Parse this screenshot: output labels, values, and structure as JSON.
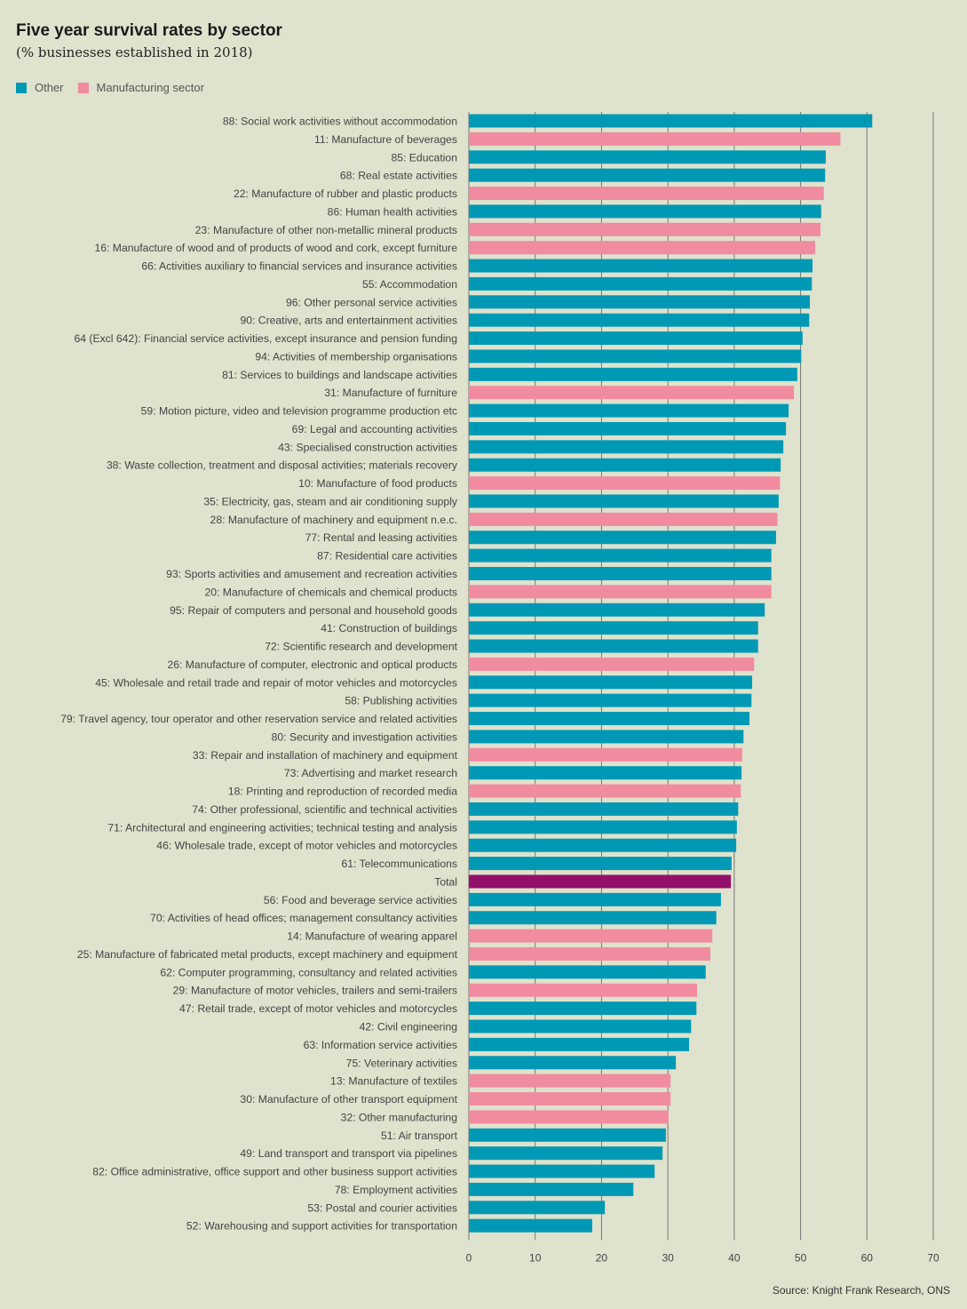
{
  "chart_data": {
    "type": "bar",
    "orientation": "horizontal",
    "title": "Five year survival rates by sector",
    "subtitle": "(% businesses established in 2018)",
    "legend": [
      {
        "name": "Other",
        "color": "#0099b5"
      },
      {
        "name": "Manufacturing sector",
        "color": "#f08ba0"
      }
    ],
    "legend_position": "top-left",
    "total_color": "#93106a",
    "xlim": [
      0,
      70
    ],
    "xticks": [
      0,
      10,
      20,
      30,
      40,
      50,
      60,
      70
    ],
    "grid": true,
    "source": "Source: Knight Frank Research, ONS",
    "categories": [
      {
        "label": "88: Social work activities without accommodation",
        "value": 60.8,
        "group": "Other"
      },
      {
        "label": "11: Manufacture of beverages",
        "value": 56.0,
        "group": "Manufacturing sector"
      },
      {
        "label": "85: Education",
        "value": 53.8,
        "group": "Other"
      },
      {
        "label": "68: Real estate activities",
        "value": 53.7,
        "group": "Other"
      },
      {
        "label": "22: Manufacture of rubber and plastic products",
        "value": 53.5,
        "group": "Manufacturing sector"
      },
      {
        "label": "86: Human health activities",
        "value": 53.1,
        "group": "Other"
      },
      {
        "label": "23: Manufacture of other non-metallic mineral products",
        "value": 53.0,
        "group": "Manufacturing sector"
      },
      {
        "label": "16: Manufacture of wood and of products of wood and cork, except furniture",
        "value": 52.2,
        "group": "Manufacturing sector"
      },
      {
        "label": "66: Activities auxiliary to financial services and insurance activities",
        "value": 51.8,
        "group": "Other"
      },
      {
        "label": "55: Accommodation",
        "value": 51.7,
        "group": "Other"
      },
      {
        "label": "96: Other personal service activities",
        "value": 51.4,
        "group": "Other"
      },
      {
        "label": "90: Creative, arts and entertainment activities",
        "value": 51.3,
        "group": "Other"
      },
      {
        "label": "64 (Excl 642): Financial service activities, except insurance and pension funding",
        "value": 50.3,
        "group": "Other"
      },
      {
        "label": "94: Activities of membership organisations",
        "value": 50.1,
        "group": "Other"
      },
      {
        "label": "81: Services to buildings and landscape activities",
        "value": 49.5,
        "group": "Other"
      },
      {
        "label": "31: Manufacture of furniture",
        "value": 49.0,
        "group": "Manufacturing sector"
      },
      {
        "label": "59: Motion picture, video and television programme production etc",
        "value": 48.2,
        "group": "Other"
      },
      {
        "label": "69: Legal and accounting activities",
        "value": 47.8,
        "group": "Other"
      },
      {
        "label": "43: Specialised construction activities",
        "value": 47.4,
        "group": "Other"
      },
      {
        "label": "38: Waste collection, treatment and disposal activities; materials recovery",
        "value": 47.0,
        "group": "Other"
      },
      {
        "label": "10: Manufacture of food products",
        "value": 46.9,
        "group": "Manufacturing sector"
      },
      {
        "label": "35: Electricity, gas, steam and air conditioning supply",
        "value": 46.7,
        "group": "Other"
      },
      {
        "label": "28: Manufacture of machinery and equipment n.e.c.",
        "value": 46.5,
        "group": "Manufacturing sector"
      },
      {
        "label": "77: Rental and leasing activities",
        "value": 46.3,
        "group": "Other"
      },
      {
        "label": "87: Residential care activities",
        "value": 45.6,
        "group": "Other"
      },
      {
        "label": "93: Sports activities and amusement and recreation activities",
        "value": 45.6,
        "group": "Other"
      },
      {
        "label": "20: Manufacture of chemicals and chemical products",
        "value": 45.6,
        "group": "Manufacturing sector"
      },
      {
        "label": "95: Repair of computers and personal and household goods",
        "value": 44.6,
        "group": "Other"
      },
      {
        "label": "41: Construction of buildings",
        "value": 43.6,
        "group": "Other"
      },
      {
        "label": "72: Scientific research and development",
        "value": 43.6,
        "group": "Other"
      },
      {
        "label": "26: Manufacture of computer, electronic and optical products",
        "value": 43.0,
        "group": "Manufacturing sector"
      },
      {
        "label": "45: Wholesale and retail trade and repair of motor vehicles and motorcycles",
        "value": 42.7,
        "group": "Other"
      },
      {
        "label": "58: Publishing activities",
        "value": 42.6,
        "group": "Other"
      },
      {
        "label": "79: Travel agency, tour operator and other reservation service and related activities",
        "value": 42.3,
        "group": "Other"
      },
      {
        "label": "80: Security and investigation activities",
        "value": 41.4,
        "group": "Other"
      },
      {
        "label": "33: Repair and installation of machinery and equipment",
        "value": 41.2,
        "group": "Manufacturing sector"
      },
      {
        "label": "73: Advertising and market research",
        "value": 41.1,
        "group": "Other"
      },
      {
        "label": "18: Printing and reproduction of recorded media",
        "value": 41.0,
        "group": "Manufacturing sector"
      },
      {
        "label": "74: Other professional, scientific and technical activities",
        "value": 40.6,
        "group": "Other"
      },
      {
        "label": "71: Architectural and engineering activities; technical testing and analysis",
        "value": 40.4,
        "group": "Other"
      },
      {
        "label": "46: Wholesale trade, except of motor vehicles and motorcycles",
        "value": 40.3,
        "group": "Other"
      },
      {
        "label": "61: Telecommunications",
        "value": 39.6,
        "group": "Other"
      },
      {
        "label": "Total",
        "value": 39.5,
        "group": "Total"
      },
      {
        "label": "56: Food and beverage service activities",
        "value": 38.0,
        "group": "Other"
      },
      {
        "label": "70: Activities of head offices; management consultancy activities",
        "value": 37.3,
        "group": "Other"
      },
      {
        "label": "14: Manufacture of wearing apparel",
        "value": 36.7,
        "group": "Manufacturing sector"
      },
      {
        "label": "25: Manufacture of fabricated metal products, except machinery and equipment",
        "value": 36.4,
        "group": "Manufacturing sector"
      },
      {
        "label": "62: Computer programming, consultancy and related activities",
        "value": 35.7,
        "group": "Other"
      },
      {
        "label": "29: Manufacture of motor vehicles, trailers and semi-trailers",
        "value": 34.4,
        "group": "Manufacturing sector"
      },
      {
        "label": "47: Retail trade, except of motor vehicles and motorcycles",
        "value": 34.3,
        "group": "Other"
      },
      {
        "label": "42: Civil engineering",
        "value": 33.5,
        "group": "Other"
      },
      {
        "label": "63: Information service activities",
        "value": 33.2,
        "group": "Other"
      },
      {
        "label": "75: Veterinary activities",
        "value": 31.2,
        "group": "Other"
      },
      {
        "label": "13: Manufacture of textiles",
        "value": 30.4,
        "group": "Manufacturing sector"
      },
      {
        "label": "30: Manufacture of other transport equipment",
        "value": 30.4,
        "group": "Manufacturing sector"
      },
      {
        "label": "32: Other manufacturing",
        "value": 30.1,
        "group": "Manufacturing sector"
      },
      {
        "label": "51: Air transport",
        "value": 29.7,
        "group": "Other"
      },
      {
        "label": "49: Land transport and transport via pipelines",
        "value": 29.2,
        "group": "Other"
      },
      {
        "label": "82: Office administrative, office support and other business support activities",
        "value": 28.0,
        "group": "Other"
      },
      {
        "label": "78: Employment activities",
        "value": 24.8,
        "group": "Other"
      },
      {
        "label": "53: Postal and courier activities",
        "value": 20.5,
        "group": "Other"
      },
      {
        "label": "52: Warehousing and support activities for transportation",
        "value": 18.6,
        "group": "Other"
      }
    ]
  }
}
